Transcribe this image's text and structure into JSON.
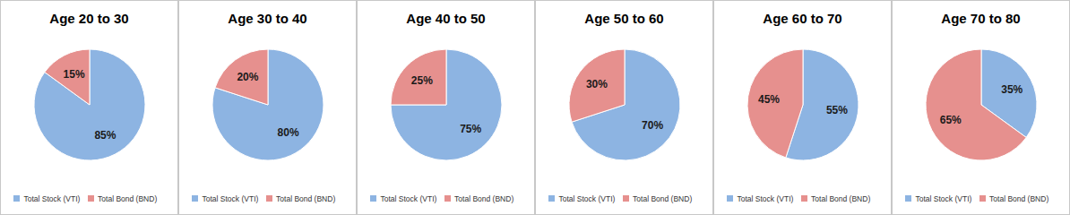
{
  "chart_data": [
    {
      "type": "pie",
      "title": "Age 20 to 30",
      "categories": [
        "Total Stock (VTI)",
        "Total Bond (BND)"
      ],
      "values": [
        85,
        15
      ],
      "value_labels": [
        "85%",
        "15%"
      ],
      "colors": [
        "#8db4e2",
        "#e6908e"
      ],
      "data_labels": true,
      "legend": "bottom"
    },
    {
      "type": "pie",
      "title": "Age 30 to 40",
      "categories": [
        "Total Stock (VTI)",
        "Total Bond (BND)"
      ],
      "values": [
        80,
        20
      ],
      "value_labels": [
        "80%",
        "20%"
      ],
      "colors": [
        "#8db4e2",
        "#e6908e"
      ],
      "data_labels": true,
      "legend": "bottom"
    },
    {
      "type": "pie",
      "title": "Age 40 to 50",
      "categories": [
        "Total Stock (VTI)",
        "Total Bond (BND)"
      ],
      "values": [
        75,
        25
      ],
      "value_labels": [
        "75%",
        "25%"
      ],
      "colors": [
        "#8db4e2",
        "#e6908e"
      ],
      "data_labels": true,
      "legend": "bottom"
    },
    {
      "type": "pie",
      "title": "Age 50 to 60",
      "categories": [
        "Total Stock (VTI)",
        "Total Bond (BND)"
      ],
      "values": [
        70,
        30
      ],
      "value_labels": [
        "70%",
        "30%"
      ],
      "colors": [
        "#8db4e2",
        "#e6908e"
      ],
      "data_labels": true,
      "legend": "bottom"
    },
    {
      "type": "pie",
      "title": "Age 60 to 70",
      "categories": [
        "Total Stock (VTI)",
        "Total Bond (BND)"
      ],
      "values": [
        55,
        45
      ],
      "value_labels": [
        "55%",
        "45%"
      ],
      "colors": [
        "#8db4e2",
        "#e6908e"
      ],
      "data_labels": true,
      "legend": "bottom"
    },
    {
      "type": "pie",
      "title": "Age 70 to 80",
      "categories": [
        "Total Stock (VTI)",
        "Total Bond (BND)"
      ],
      "values": [
        35,
        65
      ],
      "value_labels": [
        "35%",
        "65%"
      ],
      "colors": [
        "#8db4e2",
        "#e6908e"
      ],
      "data_labels": true,
      "legend": "bottom"
    }
  ]
}
